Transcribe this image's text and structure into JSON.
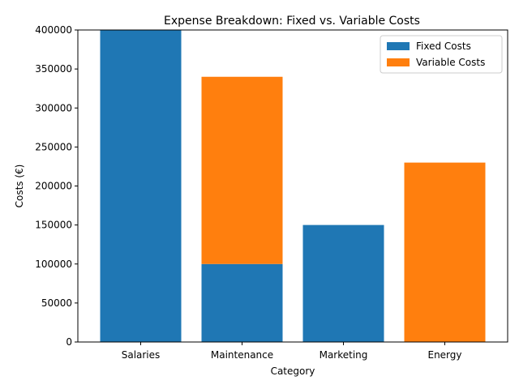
{
  "chart_data": {
    "type": "bar",
    "stacked": true,
    "title": "Expense Breakdown: Fixed vs. Variable Costs",
    "xlabel": "Category",
    "ylabel": "Costs (€)",
    "categories": [
      "Salaries",
      "Maintenance",
      "Marketing",
      "Energy"
    ],
    "series": [
      {
        "name": "Fixed Costs",
        "values": [
          400000,
          100000,
          150000,
          0
        ],
        "color": "#1f77b4"
      },
      {
        "name": "Variable Costs",
        "values": [
          0,
          240000,
          0,
          230000
        ],
        "color": "#ff7f0e"
      }
    ],
    "ylim": [
      0,
      400000
    ],
    "yticks": [
      0,
      50000,
      100000,
      150000,
      200000,
      250000,
      300000,
      350000,
      400000
    ],
    "grid": false,
    "legend_position": "top-right"
  }
}
